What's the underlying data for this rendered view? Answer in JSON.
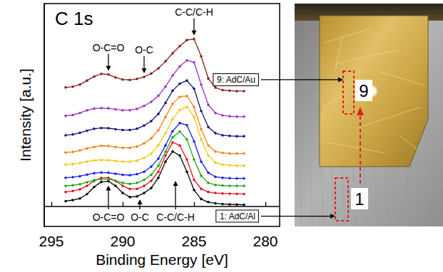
{
  "chart_data": {
    "type": "line",
    "title": "C 1s",
    "x_label": "Binding Energy [eV]",
    "y_label": "Intensity [a.u.]",
    "xlim": [
      295.5,
      279
    ],
    "xticks": [
      295,
      290,
      285,
      280
    ],
    "ylim": [
      -10,
      100
    ],
    "tick_labels": "x",
    "grid": false,
    "marker": "circle",
    "line_style": "solid",
    "x": [
      294,
      293.5,
      293,
      292.5,
      292,
      291.5,
      291,
      290.5,
      290,
      289.5,
      289,
      288.5,
      288,
      287.5,
      287,
      286.5,
      286,
      285.5,
      285,
      284.5,
      284,
      283.5,
      283,
      282.5,
      282,
      281.5
    ],
    "series": [
      {
        "name": "1: AdC/Al",
        "color": "#000000",
        "values": [
          2.5,
          3,
          3.8,
          6,
          9.5,
          12,
          12.3,
          10,
          6.5,
          4.5,
          4.8,
          6.5,
          9,
          14,
          22,
          27,
          25,
          17,
          8,
          3.5,
          2,
          1.4,
          1.1,
          0.9,
          0.8,
          0.7
        ]
      },
      {
        "color": "#e8101c",
        "values": [
          7,
          7.5,
          8.3,
          10,
          12.5,
          14,
          14,
          12.5,
          10,
          8.5,
          8.5,
          10,
          12.5,
          17,
          25,
          31.5,
          30,
          23,
          13,
          8.5,
          7,
          6.5,
          6.3,
          6.2,
          6.1,
          6
        ]
      },
      {
        "color": "#1aa81a",
        "values": [
          10,
          10.3,
          10.8,
          11.8,
          12.8,
          13.3,
          13.3,
          12.5,
          11.5,
          11,
          11.5,
          13,
          15.5,
          20,
          27,
          34,
          36.8,
          33,
          23,
          15,
          11.5,
          10.5,
          10.2,
          10,
          10,
          10
        ]
      },
      {
        "color": "#1a1aff",
        "values": [
          14,
          14.3,
          14.8,
          15.6,
          16.3,
          16.6,
          16.5,
          16,
          15.5,
          15.3,
          15.8,
          17,
          19.5,
          23.5,
          30,
          37,
          41,
          40,
          32,
          22,
          16.5,
          14.5,
          14,
          13.8,
          13.7,
          13.7
        ]
      },
      {
        "color": "#f2c811",
        "values": [
          20.5,
          20.8,
          21.3,
          22,
          22.6,
          22.8,
          22.7,
          22.3,
          22,
          22,
          22.5,
          23.8,
          26,
          30,
          36,
          43,
          47.5,
          49,
          44,
          33,
          25,
          21.5,
          20.5,
          20.2,
          20,
          20
        ]
      },
      {
        "color": "#ff7f10",
        "values": [
          26.5,
          26.8,
          27.5,
          28.5,
          29.3,
          29.8,
          29.7,
          29.2,
          28.8,
          28.8,
          29.4,
          31,
          33.5,
          37.5,
          44,
          50.5,
          54,
          54.4,
          49,
          38,
          30,
          27,
          26.3,
          26,
          26,
          26
        ]
      },
      {
        "color": "#12127a",
        "values": [
          35,
          35.4,
          36.2,
          37.3,
          38.2,
          38.6,
          38.5,
          38,
          37.6,
          37.6,
          38.2,
          39.8,
          42,
          45.5,
          51,
          57,
          60.5,
          62,
          58,
          47,
          39,
          36,
          35,
          34.7,
          34.5,
          34.5
        ]
      },
      {
        "color": "#9b2fc9",
        "values": [
          44.6,
          45,
          46,
          47.3,
          48.2,
          48.4,
          48.3,
          47.8,
          47.4,
          47.4,
          48,
          49.5,
          51.5,
          54.5,
          59,
          64.5,
          69,
          72,
          71,
          60,
          50,
          46,
          44.8,
          44.4,
          44.2,
          44.2
        ]
      },
      {
        "name": "9: AdC/Au",
        "color": "#8b1a1a",
        "values": [
          58.6,
          59,
          60,
          62,
          64,
          65.3,
          65,
          63.5,
          62.5,
          62.3,
          62.8,
          63.8,
          65.5,
          68,
          71.5,
          75.5,
          79,
          82,
          82.5,
          74,
          63,
          58.5,
          57.3,
          57,
          56.8,
          56.8
        ]
      }
    ],
    "annotations": [
      {
        "text": "O-C=O",
        "x": 291,
        "position": "above"
      },
      {
        "text": "O-C",
        "x": 288.5,
        "position": "above"
      },
      {
        "text": "C-C/C-H",
        "x": 285,
        "position": "above"
      },
      {
        "text": "O-C=O",
        "x": 291,
        "position": "below"
      },
      {
        "text": "O-C",
        "x": 288.8,
        "position": "below"
      },
      {
        "text": "C-C/C-H",
        "x": 286.3,
        "position": "below"
      }
    ]
  },
  "image": {
    "labels": [
      "9",
      "1"
    ]
  }
}
